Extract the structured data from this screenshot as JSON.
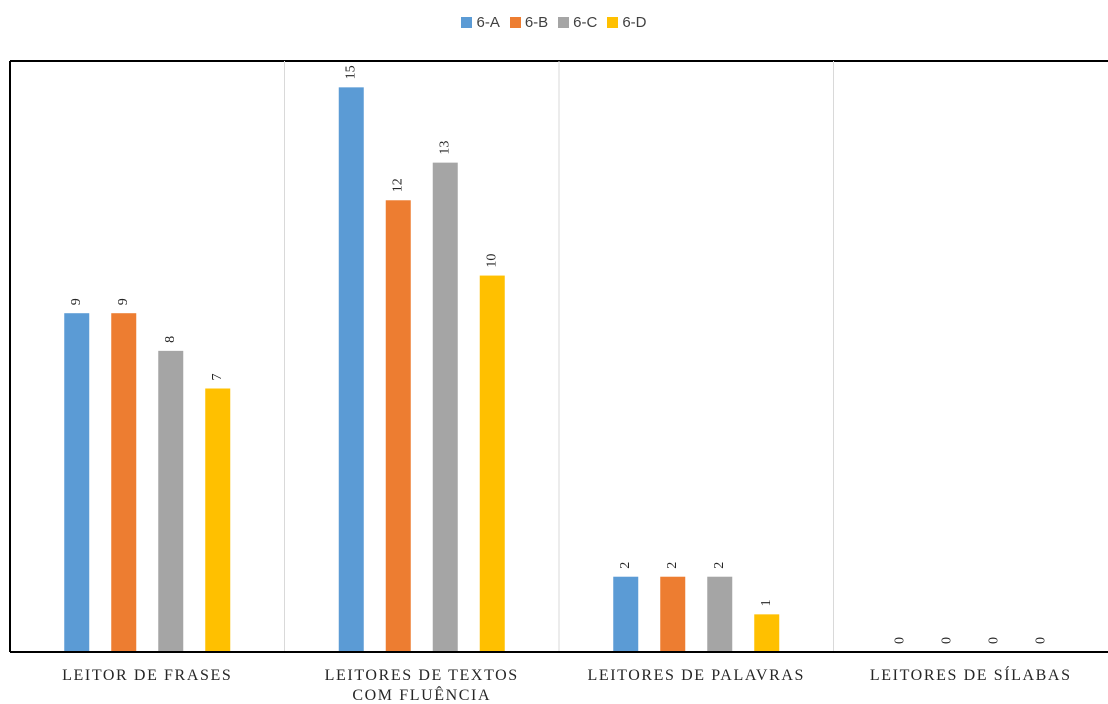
{
  "chart_data": {
    "type": "bar",
    "title": "",
    "xlabel": "",
    "ylabel": "",
    "categories": [
      [
        "LEITOR DE FRASES"
      ],
      [
        "LEITORES DE TEXTOS",
        "COM FLUÊNCIA"
      ],
      [
        "LEITORES DE PALAVRAS"
      ],
      [
        "LEITORES DE SÍLABAS"
      ]
    ],
    "series": [
      {
        "name": "6-A",
        "color": "#5B9BD5",
        "values": [
          9,
          15,
          2,
          0
        ]
      },
      {
        "name": "6-B",
        "color": "#ED7D31",
        "values": [
          9,
          12,
          2,
          0
        ]
      },
      {
        "name": "6-C",
        "color": "#A5A5A5",
        "values": [
          8,
          13,
          2,
          0
        ]
      },
      {
        "name": "6-D",
        "color": "#FFC000",
        "values": [
          7,
          10,
          1,
          0
        ]
      }
    ],
    "ylim": [
      0,
      15.7
    ],
    "grid": "vertical-category-separators",
    "legend_position": "top-center",
    "data_labels": true
  }
}
